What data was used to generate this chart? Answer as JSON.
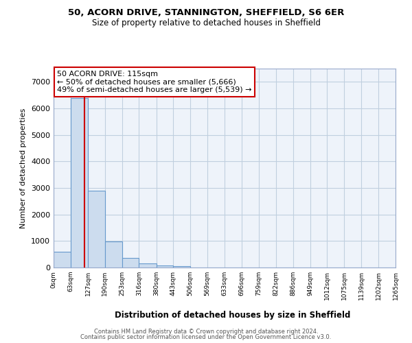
{
  "title1": "50, ACORN DRIVE, STANNINGTON, SHEFFIELD, S6 6ER",
  "title2": "Size of property relative to detached houses in Sheffield",
  "xlabel": "Distribution of detached houses by size in Sheffield",
  "ylabel": "Number of detached properties",
  "bar_values": [
    600,
    6400,
    2900,
    975,
    350,
    150,
    75,
    55,
    0,
    0,
    0,
    0,
    0,
    0,
    0,
    0,
    0,
    0,
    0,
    0
  ],
  "bin_edges": [
    0,
    63,
    127,
    190,
    253,
    316,
    380,
    443,
    506,
    569,
    633,
    696,
    759,
    822,
    886,
    949,
    1012,
    1075,
    1139,
    1202,
    1265
  ],
  "bar_color": "#ccdcee",
  "bar_edge_color": "#6699cc",
  "red_line_x": 115,
  "annotation_line1": "50 ACORN DRIVE: 115sqm",
  "annotation_line2": "← 50% of detached houses are smaller (5,666)",
  "annotation_line3": "49% of semi-detached houses are larger (5,539) →",
  "annotation_box_color": "#ffffff",
  "annotation_border_color": "#cc0000",
  "ylim": [
    0,
    7500
  ],
  "yticks": [
    0,
    1000,
    2000,
    3000,
    4000,
    5000,
    6000,
    7000
  ],
  "footer1": "Contains HM Land Registry data © Crown copyright and database right 2024.",
  "footer2": "Contains public sector information licensed under the Open Government Licence v3.0.",
  "background_color": "#ffffff",
  "grid_color": "#c0cfdf",
  "axes_bg_color": "#eef3fa"
}
